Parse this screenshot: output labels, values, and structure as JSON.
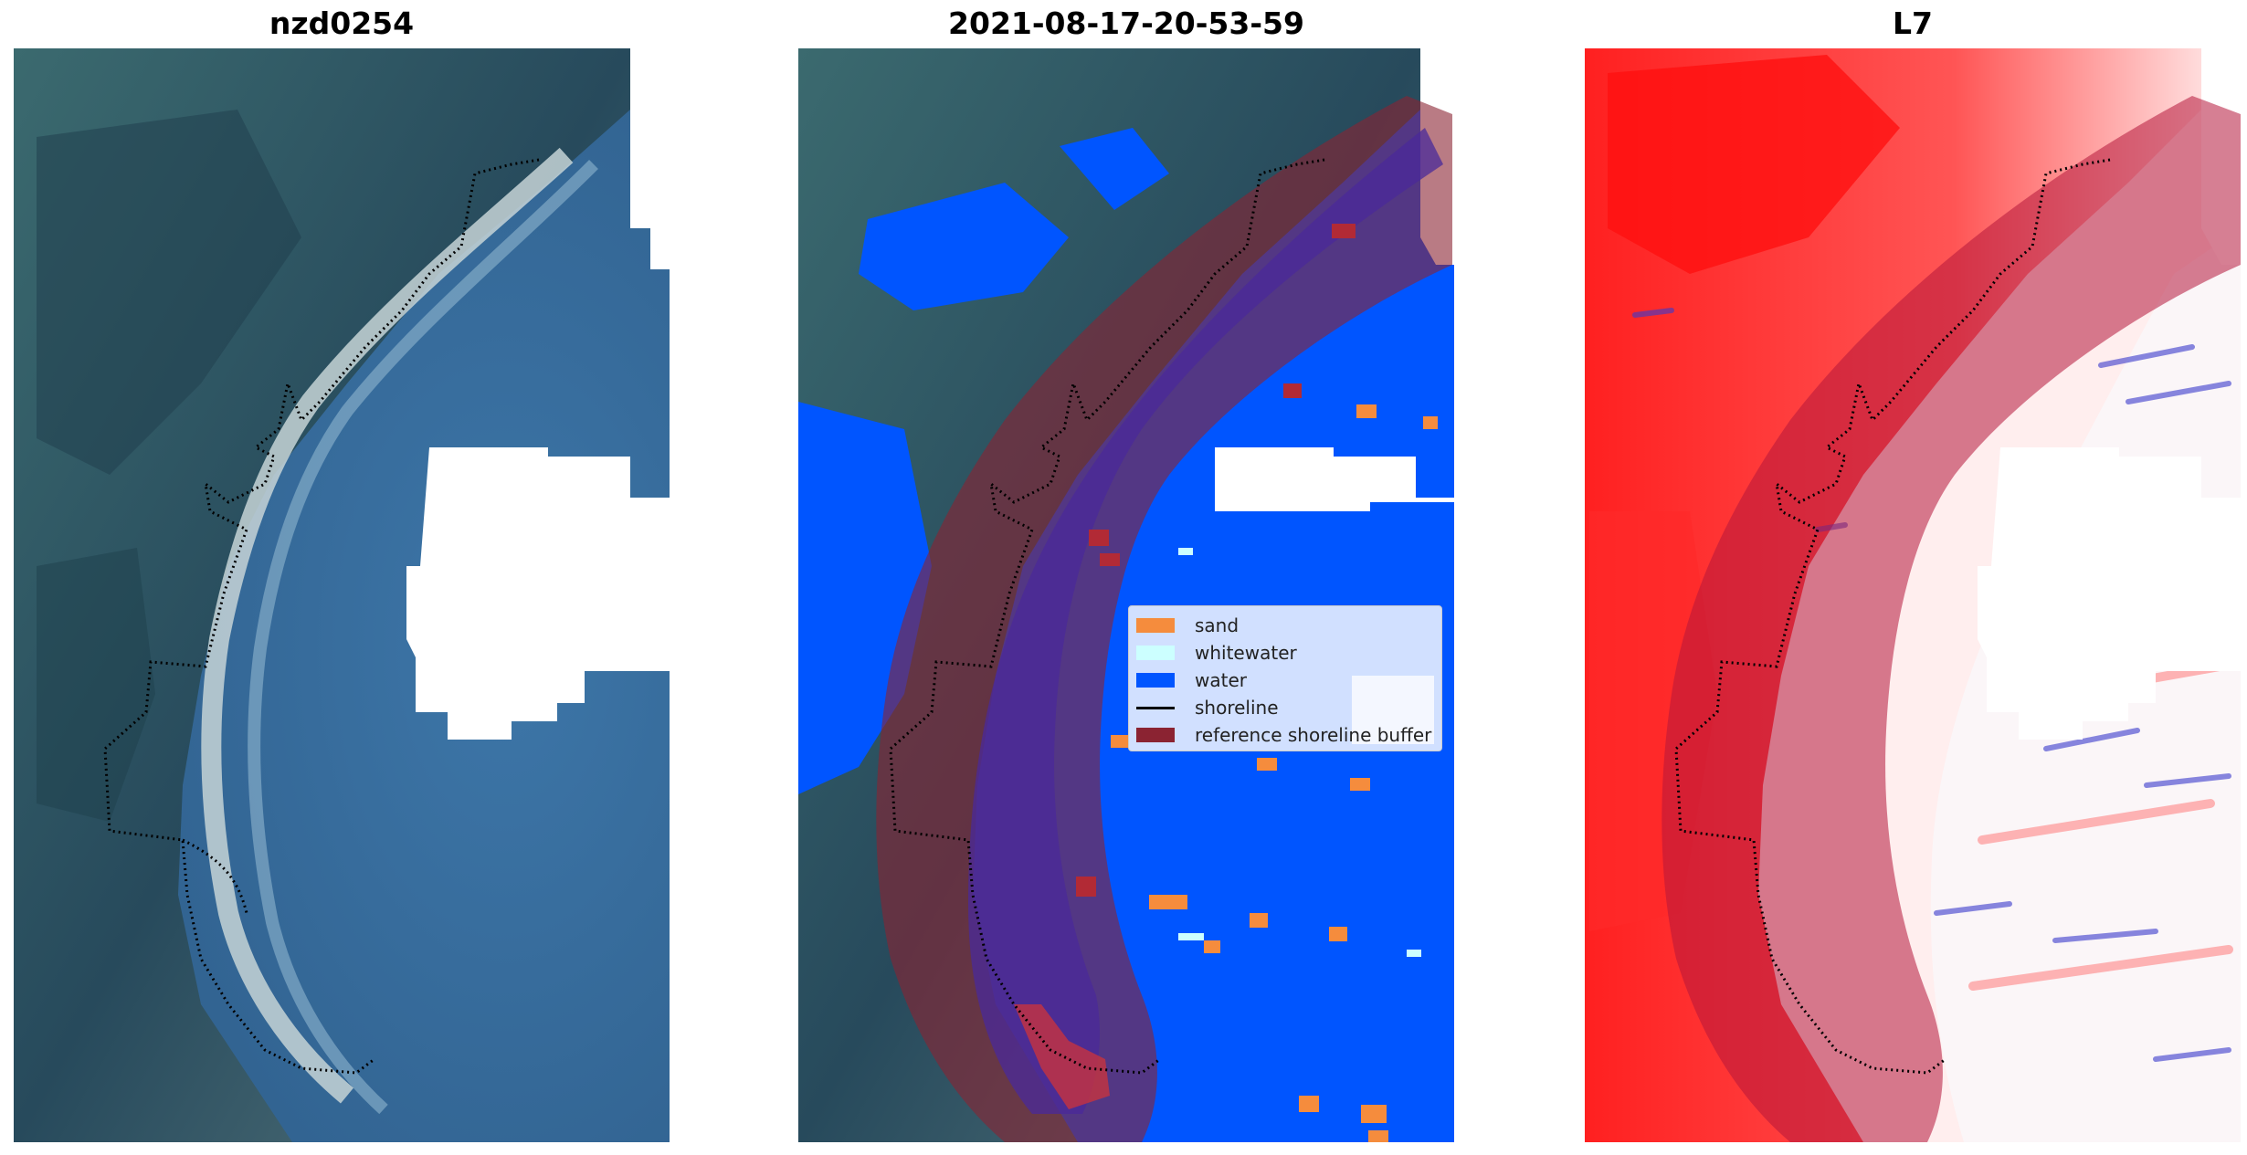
{
  "panels": [
    {
      "title": "nzd0254"
    },
    {
      "title": "2021-08-17-20-53-59"
    },
    {
      "title": "L7"
    }
  ],
  "legend": {
    "items": [
      {
        "label": "sand",
        "color": "#f58c3d",
        "kind": "patch"
      },
      {
        "label": "whitewater",
        "color": "#ccffff",
        "kind": "patch"
      },
      {
        "label": "water",
        "color": "#0055ff",
        "kind": "patch"
      },
      {
        "label": "shoreline",
        "color": "#000000",
        "kind": "line"
      },
      {
        "label": "reference shoreline buffer",
        "color": "#8b2332",
        "kind": "patch"
      }
    ]
  },
  "colors": {
    "ocean": "#3a6e9e",
    "land_dark": "#2b4a55",
    "beach": "#c9d4d6",
    "water_class": "#0055ff",
    "buffer": "#8b2332",
    "index_red": "#ff1a1a",
    "index_blue": "#3a3acc"
  }
}
